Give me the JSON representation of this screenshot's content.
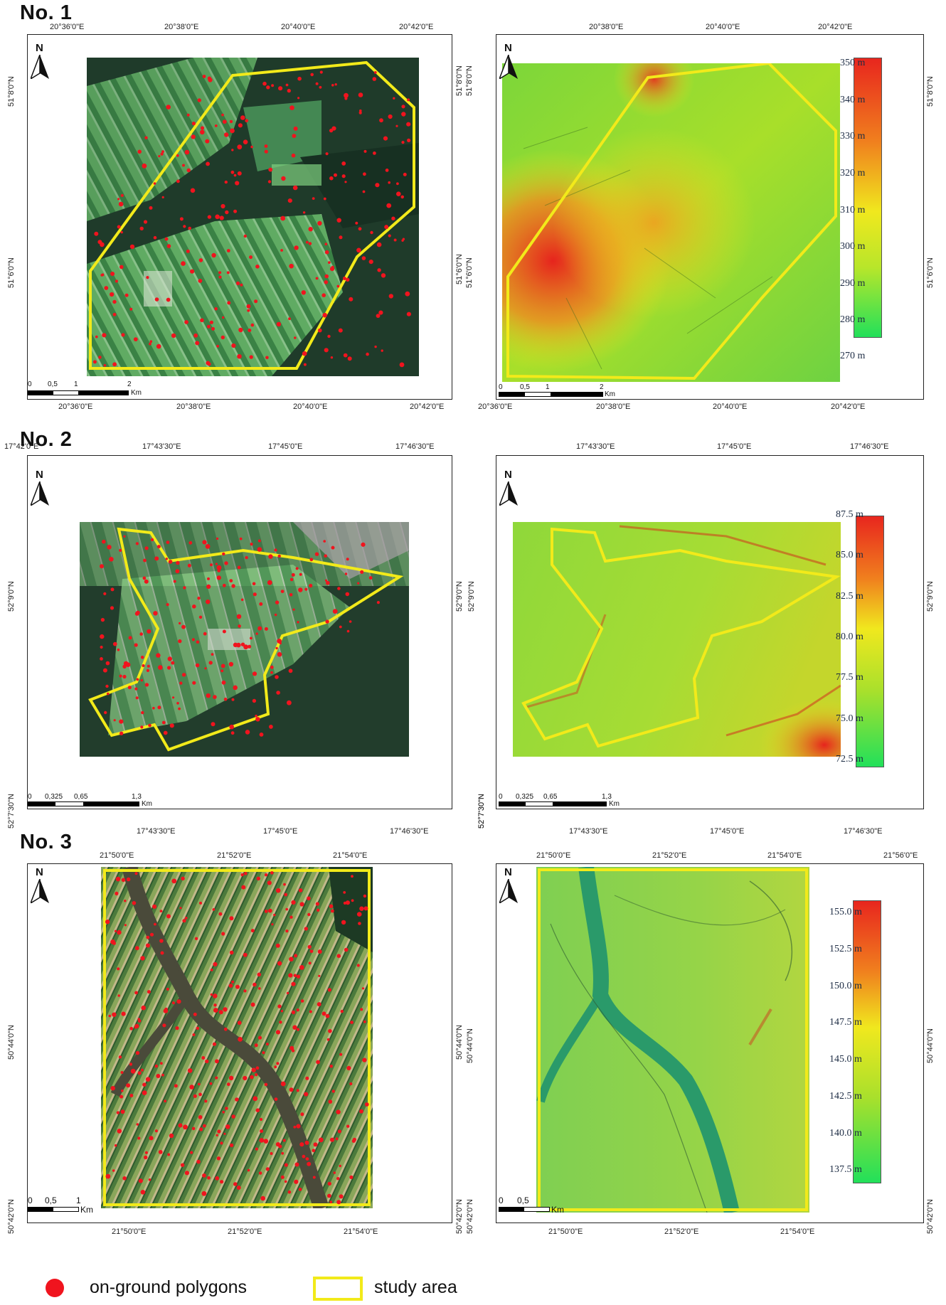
{
  "sections": [
    {
      "title": "No. 1",
      "left": {
        "top_ticks": [
          "20°36'0\"E",
          "20°38'0\"E",
          "20°40'0\"E",
          "20°42'0\"E"
        ],
        "bottom_ticks": [
          "20°36'0\"E",
          "20°38'0\"E",
          "20°40'0\"E",
          "20°42'0\"E"
        ],
        "left_ticks": [
          "51°8'0\"N",
          "51°6'0\"N"
        ],
        "right_ticks": [
          "51°8'0\"N",
          "51°6'0\"N"
        ],
        "north": "N",
        "scale": {
          "labels": [
            "0",
            "0,5",
            "1",
            "2"
          ],
          "unit": "Km"
        }
      },
      "right": {
        "top_ticks": [
          "20°38'0\"E",
          "20°40'0\"E",
          "20°42'0\"E"
        ],
        "bottom_ticks": [
          "20°36'0\"E",
          "20°38'0\"E",
          "20°40'0\"E",
          "20°42'0\"E"
        ],
        "left_ticks": [
          "51°8'0\"N",
          "51°6'0\"N"
        ],
        "right_ticks": [
          "51°8'0\"N",
          "51°6'0\"N"
        ],
        "north": "N",
        "scale": {
          "labels": [
            "0",
            "0,5",
            "1",
            "2"
          ],
          "unit": "Km"
        },
        "elevation_labels": [
          "350 m",
          "340 m",
          "330 m",
          "320 m",
          "310 m",
          "300 m",
          "290 m",
          "280 m",
          "270 m"
        ]
      }
    },
    {
      "title": "No. 2",
      "left": {
        "top_ticks": [
          "17°42'0\"E",
          "17°43'30\"E",
          "17°45'0\"E",
          "17°46'30\"E"
        ],
        "bottom_ticks": [
          "17°43'30\"E",
          "17°45'0\"E",
          "17°46'30\"E"
        ],
        "left_ticks": [
          "52°9'0\"N",
          "52°7'30\"N"
        ],
        "right_ticks": [
          "52°9'0\"N",
          "52°7'30\"N"
        ],
        "north": "N",
        "scale": {
          "labels": [
            "0",
            "0,325",
            "0,65",
            "1,3"
          ],
          "unit": "Km"
        }
      },
      "right": {
        "top_ticks": [
          "17°43'30\"E",
          "17°45'0\"E",
          "17°46'30\"E"
        ],
        "bottom_ticks": [
          "17°43'30\"E",
          "17°45'0\"E",
          "17°46'30\"E"
        ],
        "left_ticks": [
          "52°9'0\"N",
          "52°7'30\"N"
        ],
        "right_ticks": [
          "52°9'0\"N"
        ],
        "north": "N",
        "scale": {
          "labels": [
            "0",
            "0,325",
            "0,65",
            "1,3"
          ],
          "unit": "Km"
        },
        "elevation_labels": [
          "87.5 m",
          "85.0 m",
          "82.5 m",
          "80.0 m",
          "77.5 m",
          "75.0 m",
          "72.5 m"
        ]
      }
    },
    {
      "title": "No. 3",
      "left": {
        "top_ticks": [
          "21°50'0\"E",
          "21°52'0\"E",
          "21°54'0\"E"
        ],
        "bottom_ticks": [
          "21°50'0\"E",
          "21°52'0\"E",
          "21°54'0\"E"
        ],
        "left_ticks": [
          "50°44'0\"N",
          "50°42'0\"N"
        ],
        "right_ticks": [
          "50°44'0\"N",
          "50°42'0\"N"
        ],
        "north": "N",
        "scale": {
          "labels": [
            "0",
            "0,5",
            "1"
          ],
          "unit": "Km"
        }
      },
      "right": {
        "top_ticks": [
          "21°50'0\"E",
          "21°52'0\"E",
          "21°54'0\"E",
          "21°56'0\"E"
        ],
        "bottom_ticks": [
          "21°50'0\"E",
          "21°52'0\"E",
          "21°54'0\"E"
        ],
        "left_ticks": [
          "50°44'0\"N",
          "50°42'0\"N"
        ],
        "right_ticks": [
          "50°44'0\"N",
          "50°42'0\"N"
        ],
        "north": "N",
        "scale": {
          "labels": [
            "0",
            "0,5"
          ],
          "unit": "Km"
        },
        "elevation_labels": [
          "155.0 m",
          "152.5 m",
          "150.0 m",
          "147.5 m",
          "145.0 m",
          "142.5 m",
          "140.0 m",
          "137.5 m"
        ]
      }
    }
  ],
  "legend": {
    "dot_label": "on-ground polygons",
    "box_label": "study area"
  },
  "colors": {
    "study_area": "#f2ea1a",
    "polygons": "#f0141e",
    "dem_high": "#e8261e",
    "dem_mid": "#f0e81e",
    "dem_low": "#22e05a"
  }
}
